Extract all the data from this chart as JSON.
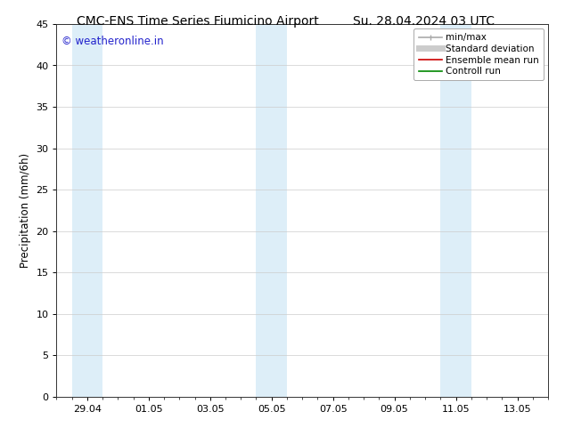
{
  "title_left": "CMC-ENS Time Series Fiumicino Airport",
  "title_right": "Su. 28.04.2024 03 UTC",
  "ylabel": "Precipitation (mm/6h)",
  "ylim": [
    0,
    45
  ],
  "yticks": [
    0,
    5,
    10,
    15,
    20,
    25,
    30,
    35,
    40,
    45
  ],
  "xtick_labels": [
    "29.04",
    "01.05",
    "03.05",
    "05.05",
    "07.05",
    "09.05",
    "11.05",
    "13.05"
  ],
  "xlim": [
    0,
    16
  ],
  "xtick_positions": [
    1,
    3,
    5,
    7,
    9,
    11,
    13,
    15
  ],
  "shaded_bands": [
    {
      "start": 0.5,
      "end": 1.5
    },
    {
      "start": 6.5,
      "end": 7.5
    },
    {
      "start": 12.5,
      "end": 13.5
    }
  ],
  "band_color": "#ddeef8",
  "background_color": "#ffffff",
  "watermark_text": "© weatheronline.in",
  "watermark_color": "#2222cc",
  "legend_entries": [
    {
      "label": "min/max",
      "color": "#aaaaaa",
      "lw": 1.2,
      "style": "line_with_caps"
    },
    {
      "label": "Standard deviation",
      "color": "#cccccc",
      "lw": 5,
      "style": "line"
    },
    {
      "label": "Ensemble mean run",
      "color": "#cc0000",
      "lw": 1.2,
      "style": "line"
    },
    {
      "label": "Controll run",
      "color": "#008800",
      "lw": 1.2,
      "style": "line"
    }
  ],
  "title_fontsize": 10,
  "ylabel_fontsize": 8.5,
  "tick_fontsize": 8,
  "watermark_fontsize": 8.5,
  "legend_fontsize": 7.5
}
